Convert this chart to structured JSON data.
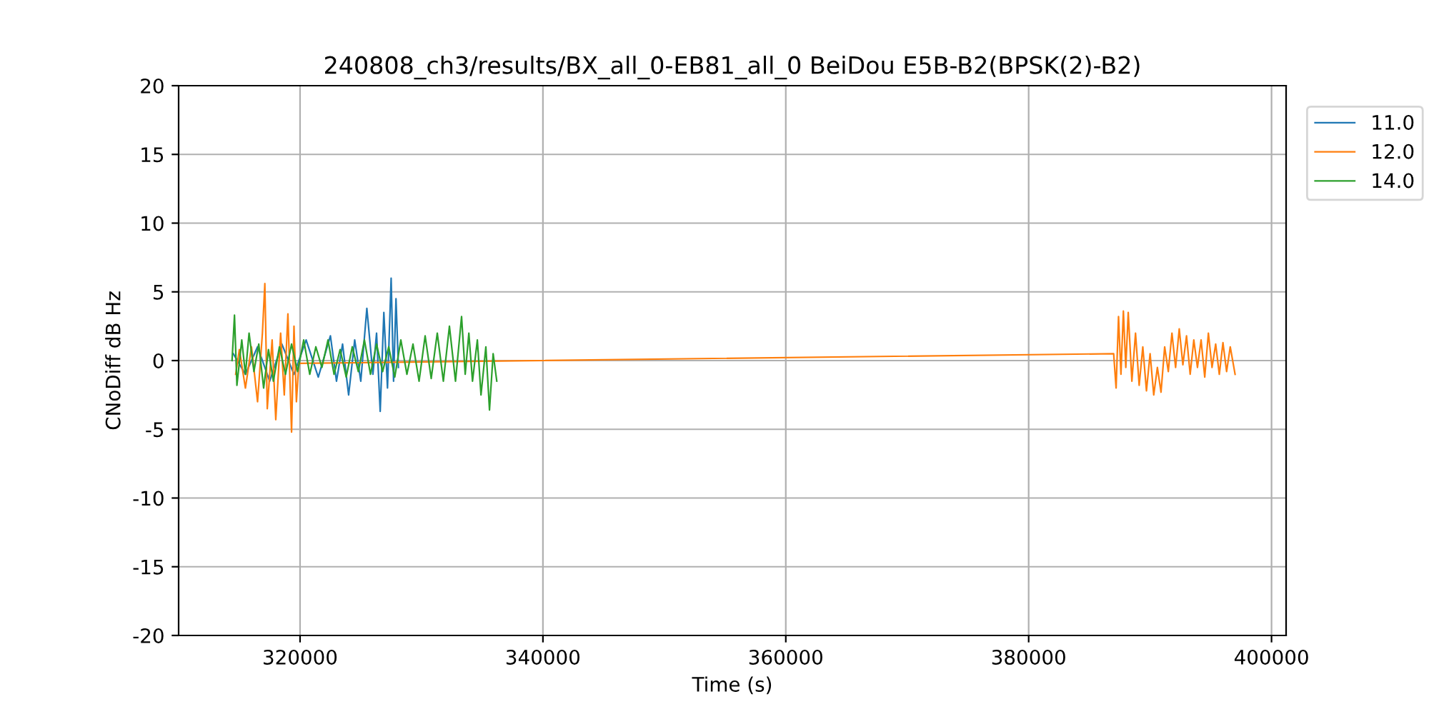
{
  "chart_data": {
    "type": "line",
    "title": "240808_ch3/results/BX_all_0-EB81_all_0 BeiDou E5B-B2(BPSK(2)-B2)",
    "xlabel": "Time (s)",
    "ylabel": "CNoDiff dB Hz",
    "xlim": [
      310000,
      401200
    ],
    "xticks": [
      320000,
      340000,
      360000,
      380000,
      400000
    ],
    "ylim": [
      -20,
      20
    ],
    "yticks": [
      -20,
      -15,
      -10,
      -5,
      0,
      5,
      10,
      15,
      20
    ],
    "grid": true,
    "legend": "top right",
    "line_style": "solid",
    "marker": "none",
    "series": [
      {
        "name": "11.0",
        "color": "#1f77b4",
        "x": [
          314500,
          315500,
          316500,
          317500,
          318500,
          319500,
          320500,
          321500,
          322500,
          323000,
          323500,
          324000,
          324500,
          325000,
          325500,
          326000,
          326300,
          326600,
          326900,
          327200,
          327500,
          327700,
          327900,
          328100
        ],
        "values": [
          0.5,
          -1,
          1,
          -1.5,
          1.2,
          -1,
          1.5,
          -1.2,
          1.8,
          -1.5,
          1.2,
          -2.5,
          1.5,
          -1.5,
          3.8,
          -1,
          2,
          -3.7,
          3.5,
          -2,
          6,
          -1.5,
          4.5,
          -0.5
        ]
      },
      {
        "name": "12.0",
        "color": "#ff7f0e",
        "x": [
          314700,
          315000,
          315500,
          316000,
          316500,
          316900,
          317100,
          317300,
          317700,
          318000,
          318400,
          318700,
          319000,
          319300,
          319500,
          319700,
          319900,
          387000,
          387200,
          387400,
          387600,
          387800,
          388000,
          388200,
          388500,
          388800,
          389100,
          389400,
          389700,
          390000,
          390300,
          390600,
          390900,
          391200,
          391500,
          391800,
          392100,
          392400,
          392700,
          393000,
          393300,
          393600,
          393900,
          394200,
          394500,
          394800,
          395100,
          395400,
          395700,
          396000,
          396300,
          396600,
          397000
        ],
        "values": [
          -1,
          0.8,
          -2,
          1,
          -3,
          2,
          5.6,
          -3.5,
          1.5,
          -4.3,
          2,
          -2.5,
          3.4,
          -5.2,
          2.5,
          -3,
          -0.2,
          0.5,
          -2,
          3.2,
          -1,
          3.6,
          -0.5,
          3.5,
          -1.5,
          2,
          -1.8,
          1,
          -2.2,
          0.5,
          -2.5,
          -0.5,
          -2.3,
          1,
          -0.8,
          2,
          -0.5,
          2.3,
          -0.3,
          1.8,
          -1,
          1.5,
          -0.5,
          1.5,
          -1.2,
          2,
          -0.5,
          1.2,
          -1,
          1.3,
          -0.8,
          1,
          -1
        ]
      },
      {
        "name": "14.0",
        "color": "#2ca02c",
        "x": [
          314400,
          314600,
          314800,
          315200,
          315500,
          315800,
          316200,
          316600,
          317000,
          317400,
          317800,
          318300,
          318800,
          319300,
          319800,
          320300,
          320800,
          321300,
          321800,
          322300,
          322800,
          323300,
          323800,
          324300,
          324800,
          325300,
          325800,
          326300,
          326800,
          327300,
          327800,
          328300,
          328800,
          329300,
          329800,
          330300,
          330800,
          331300,
          331800,
          332300,
          332800,
          333300,
          333600,
          333900,
          334200,
          334600,
          334900,
          335300,
          335600,
          335900,
          336200
        ],
        "values": [
          0,
          3.3,
          -1.8,
          1.5,
          -1,
          2,
          -0.8,
          1.2,
          -2,
          0.8,
          -1.5,
          1,
          -1,
          1.2,
          -0.8,
          1.5,
          -1,
          1,
          -0.5,
          1.5,
          -1,
          0.8,
          -1.2,
          1,
          -0.8,
          1.5,
          -1,
          1.2,
          -0.8,
          1,
          -1.2,
          1.5,
          -1,
          1.2,
          -1.5,
          1.8,
          -1.3,
          2,
          -1.5,
          2.5,
          -1.5,
          3.2,
          -1,
          2,
          -1.5,
          1.5,
          -2.5,
          1,
          -3.6,
          0.5,
          -1.5
        ]
      }
    ]
  }
}
